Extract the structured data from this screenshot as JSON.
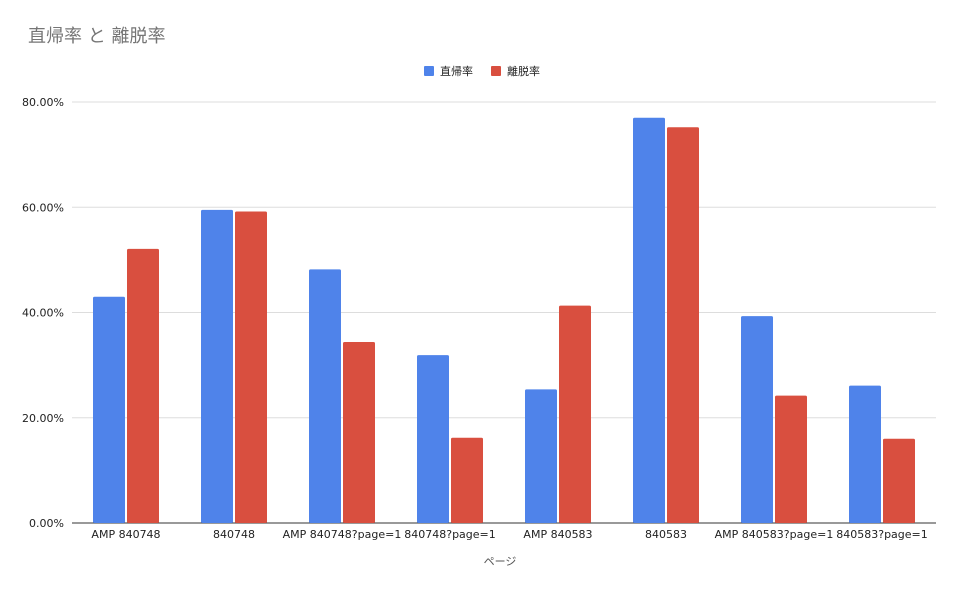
{
  "chart_data": {
    "type": "bar",
    "title": "直帰率 と 離脱率",
    "xlabel": "ページ",
    "ylabel": "",
    "categories": [
      "AMP 840748",
      "840748",
      "AMP 840748?page=1",
      "840748?page=1",
      "AMP 840583",
      "840583",
      "AMP 840583?page=1",
      "840583?page=1"
    ],
    "series": [
      {
        "name": "直帰率",
        "color": "#4f83ea",
        "values": [
          43.0,
          59.5,
          48.2,
          31.9,
          25.4,
          77.0,
          39.3,
          26.1
        ]
      },
      {
        "name": "離脱率",
        "color": "#d94f3f",
        "values": [
          52.1,
          59.2,
          34.4,
          16.2,
          41.3,
          75.2,
          24.2,
          16.0
        ]
      }
    ],
    "ylim": [
      0,
      80
    ],
    "yticks": [
      "0.00%",
      "20.00%",
      "40.00%",
      "60.00%",
      "80.00%"
    ],
    "grid": true,
    "legend": "top-center"
  }
}
